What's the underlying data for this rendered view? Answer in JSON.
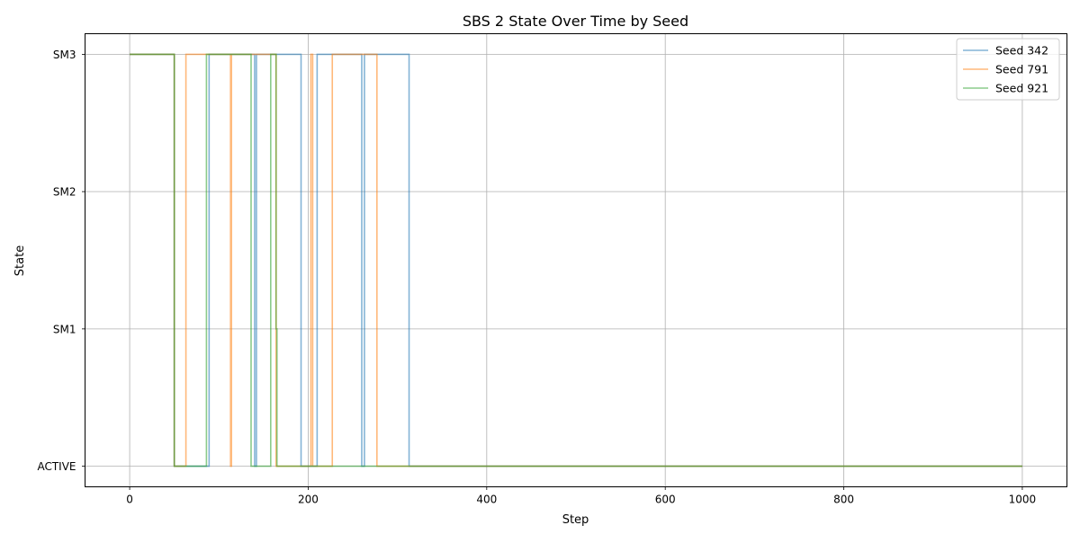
{
  "chart_data": {
    "type": "line",
    "title": "SBS 2 State Over Time by Seed",
    "xlabel": "Step",
    "ylabel": "State",
    "xlim": [
      -50,
      1050
    ],
    "ylim": [
      -0.15,
      3.15
    ],
    "x_ticks": [
      0,
      200,
      400,
      600,
      800,
      1000
    ],
    "y_categories": [
      "ACTIVE",
      "SM1",
      "SM2",
      "SM3"
    ],
    "grid": true,
    "legend_position": "top-right",
    "series": [
      {
        "name": "Seed 342",
        "color": "#1f77b4",
        "points": [
          [
            0,
            3
          ],
          [
            50,
            3
          ],
          [
            50,
            0
          ],
          [
            89,
            0
          ],
          [
            89,
            3
          ],
          [
            140,
            3
          ],
          [
            140,
            0
          ],
          [
            142,
            0
          ],
          [
            142,
            3
          ],
          [
            192,
            3
          ],
          [
            192,
            0
          ],
          [
            210,
            0
          ],
          [
            210,
            3
          ],
          [
            260,
            3
          ],
          [
            260,
            0
          ],
          [
            263,
            0
          ],
          [
            263,
            3
          ],
          [
            313,
            3
          ],
          [
            313,
            0
          ],
          [
            1000,
            0
          ]
        ]
      },
      {
        "name": "Seed 791",
        "color": "#ff7f0e",
        "points": [
          [
            0,
            3
          ],
          [
            50,
            3
          ],
          [
            50,
            0
          ],
          [
            63,
            0
          ],
          [
            63,
            3
          ],
          [
            113,
            3
          ],
          [
            113,
            0
          ],
          [
            114,
            0
          ],
          [
            114,
            3
          ],
          [
            164,
            3
          ],
          [
            164,
            0
          ],
          [
            203,
            0
          ],
          [
            203,
            3
          ],
          [
            205,
            3
          ],
          [
            205,
            0
          ],
          [
            227,
            0
          ],
          [
            227,
            3
          ],
          [
            277,
            3
          ],
          [
            277,
            0
          ],
          [
            1000,
            0
          ]
        ]
      },
      {
        "name": "Seed 921",
        "color": "#2ca02c",
        "points": [
          [
            0,
            3
          ],
          [
            50,
            3
          ],
          [
            50,
            0
          ],
          [
            86,
            0
          ],
          [
            86,
            3
          ],
          [
            136,
            3
          ],
          [
            136,
            0
          ],
          [
            158,
            0
          ],
          [
            158,
            3
          ],
          [
            164,
            3
          ],
          [
            164,
            1
          ],
          [
            165,
            1
          ],
          [
            165,
            0
          ],
          [
            1000,
            0
          ]
        ]
      }
    ]
  }
}
